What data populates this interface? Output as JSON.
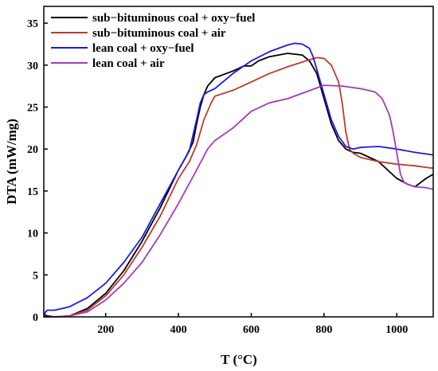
{
  "chart_data": {
    "type": "line",
    "xlabel": "T (°C)",
    "ylabel": "DTA (mW/mg)",
    "xlim": [
      30,
      1100
    ],
    "ylim": [
      0,
      37
    ],
    "xticks": [
      200,
      400,
      600,
      800,
      1000
    ],
    "yticks": [
      0,
      5,
      10,
      15,
      20,
      25,
      30,
      35
    ],
    "grid": false,
    "legend_position": "top-left",
    "series": [
      {
        "name": "sub−bituminous coal + oxy−fuel",
        "color": "#000000",
        "x": [
          30,
          40,
          60,
          100,
          150,
          200,
          250,
          300,
          350,
          400,
          420,
          440,
          450,
          460,
          470,
          480,
          500,
          550,
          580,
          600,
          620,
          650,
          700,
          740,
          760,
          780,
          800,
          820,
          840,
          860,
          880,
          900,
          950,
          1000,
          1030,
          1050,
          1080,
          1100
        ],
        "y": [
          0.3,
          0.1,
          0.0,
          0.1,
          1.0,
          2.8,
          5.5,
          9.0,
          13.0,
          17.5,
          19.0,
          20.8,
          23.0,
          25.0,
          26.5,
          27.5,
          28.5,
          29.3,
          29.9,
          29.9,
          30.5,
          31.0,
          31.4,
          31.2,
          30.5,
          29.0,
          26.0,
          23.0,
          21.0,
          20.0,
          19.6,
          19.5,
          18.5,
          16.5,
          15.8,
          15.5,
          16.5,
          17.0
        ]
      },
      {
        "name": "sub−bituminous coal + air",
        "color": "#c0392b",
        "x": [
          30,
          60,
          100,
          150,
          200,
          250,
          300,
          350,
          400,
          430,
          450,
          470,
          490,
          500,
          550,
          600,
          650,
          700,
          750,
          780,
          800,
          820,
          840,
          850,
          860,
          870,
          880,
          900,
          950,
          1000,
          1050,
          1100
        ],
        "y": [
          0.0,
          0.0,
          0.1,
          0.8,
          2.5,
          5.0,
          8.3,
          12.0,
          16.5,
          18.5,
          20.5,
          23.5,
          25.5,
          26.3,
          27.0,
          28.0,
          29.0,
          29.8,
          30.5,
          30.9,
          30.8,
          30.0,
          28.0,
          25.5,
          22.0,
          20.0,
          19.5,
          19.0,
          18.5,
          18.2,
          18.0,
          17.7
        ]
      },
      {
        "name": "lean coal + oxy−fuel",
        "color": "#1a1ae6",
        "x": [
          30,
          35,
          40,
          60,
          100,
          150,
          200,
          250,
          300,
          350,
          400,
          430,
          450,
          460,
          470,
          480,
          500,
          550,
          600,
          650,
          700,
          720,
          740,
          760,
          770,
          780,
          800,
          820,
          840,
          860,
          880,
          900,
          950,
          1000,
          1050,
          1100
        ],
        "y": [
          0.2,
          0.6,
          0.8,
          0.8,
          1.2,
          2.3,
          4.0,
          6.5,
          9.5,
          13.5,
          17.5,
          19.8,
          23.5,
          25.5,
          26.5,
          26.8,
          27.2,
          29.0,
          30.5,
          31.6,
          32.4,
          32.6,
          32.5,
          32.0,
          31.0,
          29.5,
          26.5,
          23.5,
          21.5,
          20.3,
          20.0,
          20.2,
          20.3,
          20.0,
          19.6,
          19.3
        ]
      },
      {
        "name": "lean coal + air",
        "color": "#a23bb8",
        "x": [
          30,
          60,
          100,
          150,
          200,
          250,
          300,
          350,
          400,
          450,
          480,
          500,
          550,
          600,
          650,
          700,
          750,
          800,
          850,
          900,
          940,
          960,
          980,
          990,
          1000,
          1010,
          1020,
          1030,
          1050,
          1080,
          1100
        ],
        "y": [
          0.0,
          0.0,
          0.1,
          0.6,
          2.0,
          4.0,
          6.5,
          9.8,
          13.5,
          17.5,
          20.0,
          21.0,
          22.5,
          24.5,
          25.5,
          26.0,
          26.8,
          27.6,
          27.5,
          27.2,
          26.8,
          26.0,
          24.0,
          22.0,
          19.5,
          17.0,
          16.0,
          15.8,
          15.5,
          15.4,
          15.2
        ]
      }
    ]
  }
}
